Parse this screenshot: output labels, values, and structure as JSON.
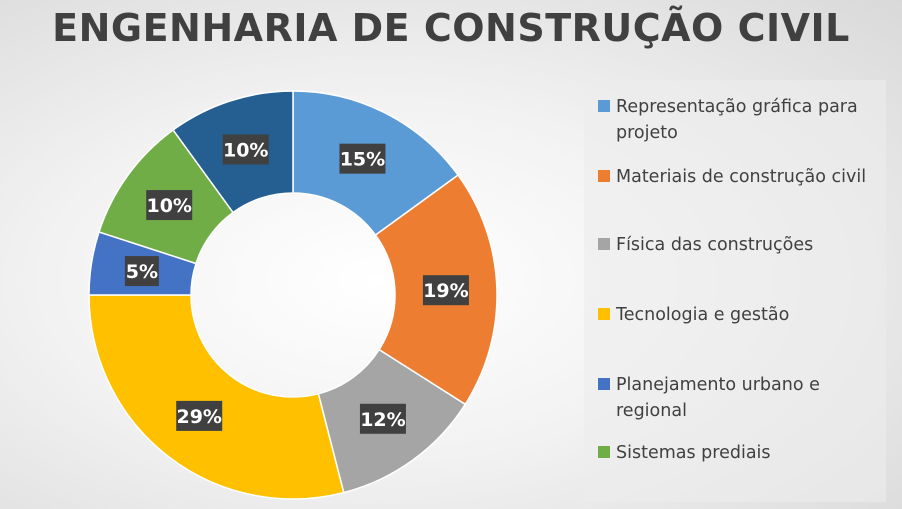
{
  "chart_data": {
    "type": "pie",
    "variant": "donut",
    "title": "ENGENHARIA DE CONSTRUÇÃO CIVIL",
    "legend_position": "right",
    "categories": [
      "Representação gráfica para projeto",
      "Materiais de construção civil",
      "Física das construções",
      "Tecnologia e gestão",
      "Planejamento urbano e regional",
      "Sistemas prediais",
      ""
    ],
    "values": [
      15,
      19,
      12,
      29,
      5,
      10,
      10
    ],
    "labels": [
      "15%",
      "19%",
      "12%",
      "29%",
      "5%",
      "10%",
      "10%"
    ],
    "colors": [
      "#5B9BD5",
      "#ED7D31",
      "#A5A5A5",
      "#FFC000",
      "#4472C4",
      "#70AD47",
      "#255E91"
    ]
  },
  "legend": {
    "items": [
      {
        "label": "Representação gráfica para projeto",
        "color": "#5B9BD5"
      },
      {
        "label": "Materiais de construção civil",
        "color": "#ED7D31"
      },
      {
        "label": "Física das construções",
        "color": "#A5A5A5"
      },
      {
        "label": "Tecnologia e gestão",
        "color": "#FFC000"
      },
      {
        "label": "Planejamento urbano e regional",
        "color": "#4472C4"
      },
      {
        "label": "Sistemas prediais",
        "color": "#70AD47"
      }
    ]
  }
}
